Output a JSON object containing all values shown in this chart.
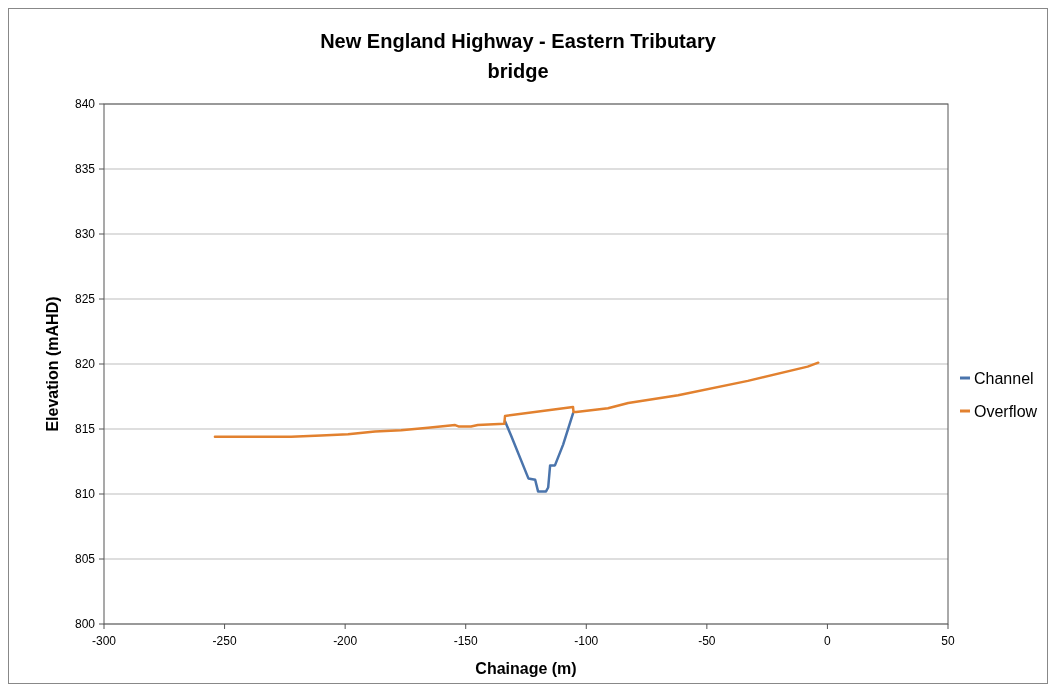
{
  "chart_data": {
    "type": "line",
    "title": "New England Highway - Eastern Tributary bridge",
    "xlabel": "Chainage (m)",
    "ylabel": "Elevation (mAHD)",
    "xlim": [
      -300,
      50
    ],
    "xticks": [
      -300,
      -250,
      -200,
      -150,
      -100,
      -50,
      0,
      50
    ],
    "ylim": [
      800,
      840
    ],
    "yticks": [
      800,
      805,
      810,
      815,
      820,
      825,
      830,
      835,
      840
    ],
    "grid": "y",
    "legend": "right",
    "marker": "none",
    "line_style": "solid",
    "series": [
      {
        "name": "Channel",
        "color": "#4a74ac",
        "x": [
          -133.7,
          -131.2,
          -124,
          -121.2,
          -120,
          -116.7,
          -115.8,
          -115,
          -113,
          -109.6,
          -105.5
        ],
        "values": [
          815.6,
          814.5,
          811.2,
          811.1,
          810.2,
          810.2,
          810.5,
          812.2,
          812.2,
          813.8,
          816.2
        ]
      },
      {
        "name": "Overflow",
        "color": "#e2812f",
        "x": [
          -254,
          -222.4,
          -210,
          -198.8,
          -187.6,
          -176.8,
          -165.6,
          -154.4,
          -153,
          -147.8,
          -145,
          -134,
          -133.7,
          -105.5,
          -105.3,
          -104.2,
          -91,
          -82.6,
          -61.9,
          -33,
          -8.2,
          -3.8
        ],
        "values": [
          814.4,
          814.4,
          814.5,
          814.6,
          814.8,
          814.9,
          815.1,
          815.3,
          815.2,
          815.2,
          815.3,
          815.4,
          816.0,
          816.7,
          816.3,
          816.3,
          816.6,
          817.0,
          817.6,
          818.7,
          819.8,
          820.1
        ]
      }
    ]
  }
}
